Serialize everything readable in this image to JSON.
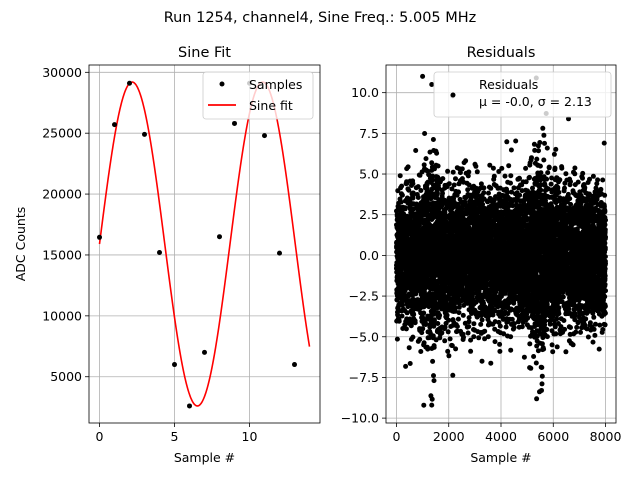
{
  "suptitle": "Run 1254, channel4, Sine Freq.: 5.005 MHz",
  "colors": {
    "samples": "#000000",
    "fit": "#ff0000",
    "grid": "#b0b0b0"
  },
  "chart_data": [
    {
      "type": "line",
      "title": "Sine Fit",
      "xlabel": "Sample #",
      "ylabel": "ADC Counts",
      "xlim": [
        -0.7,
        14.7
      ],
      "ylim": [
        1200,
        30600
      ],
      "xticks": [
        0,
        5,
        10
      ],
      "yticks": [
        5000,
        10000,
        15000,
        20000,
        25000,
        30000
      ],
      "grid": true,
      "legend_position": "upper right",
      "series": [
        {
          "name": "Samples",
          "style": "points",
          "x": [
            0,
            1,
            2,
            3,
            4,
            5,
            6,
            7,
            8,
            9,
            10,
            11,
            12,
            13
          ],
          "y": [
            16450,
            25700,
            29100,
            24900,
            15200,
            6000,
            2600,
            7000,
            16500,
            25800,
            29100,
            24800,
            15150,
            6000
          ]
        },
        {
          "name": "Sine fit",
          "style": "line",
          "function": "sine",
          "amplitude": 13300,
          "offset": 15900,
          "period_samples": 8.7,
          "phase_deg": 0,
          "x_range": [
            0,
            14
          ]
        }
      ]
    },
    {
      "type": "scatter",
      "title": "Residuals",
      "xlabel": "Sample #",
      "ylabel": "",
      "xlim": [
        -400,
        8400
      ],
      "ylim": [
        -10.3,
        11.7
      ],
      "xticks": [
        0,
        2000,
        4000,
        6000,
        8000
      ],
      "yticks": [
        -10.0,
        -7.5,
        -5.0,
        -2.5,
        0.0,
        2.5,
        5.0,
        7.5,
        10.0
      ],
      "grid": true,
      "legend_position": "upper right",
      "series": [
        {
          "name": "Residuals",
          "legend_line2": "μ = -0.0, σ = 2.13",
          "mu": 0.0,
          "sigma": 2.13,
          "n_points": 8000,
          "x_range": [
            0,
            8000
          ],
          "highlighted_points": [
            {
              "x": 1000,
              "y": 11.0
            },
            {
              "x": 1350,
              "y": 10.5
            },
            {
              "x": 2150,
              "y": 9.8
            },
            {
              "x": 5350,
              "y": 10.9
            },
            {
              "x": 7950,
              "y": 6.9
            },
            {
              "x": 1350,
              "y": -9.2
            },
            {
              "x": 5550,
              "y": -8.3
            }
          ]
        }
      ]
    }
  ]
}
